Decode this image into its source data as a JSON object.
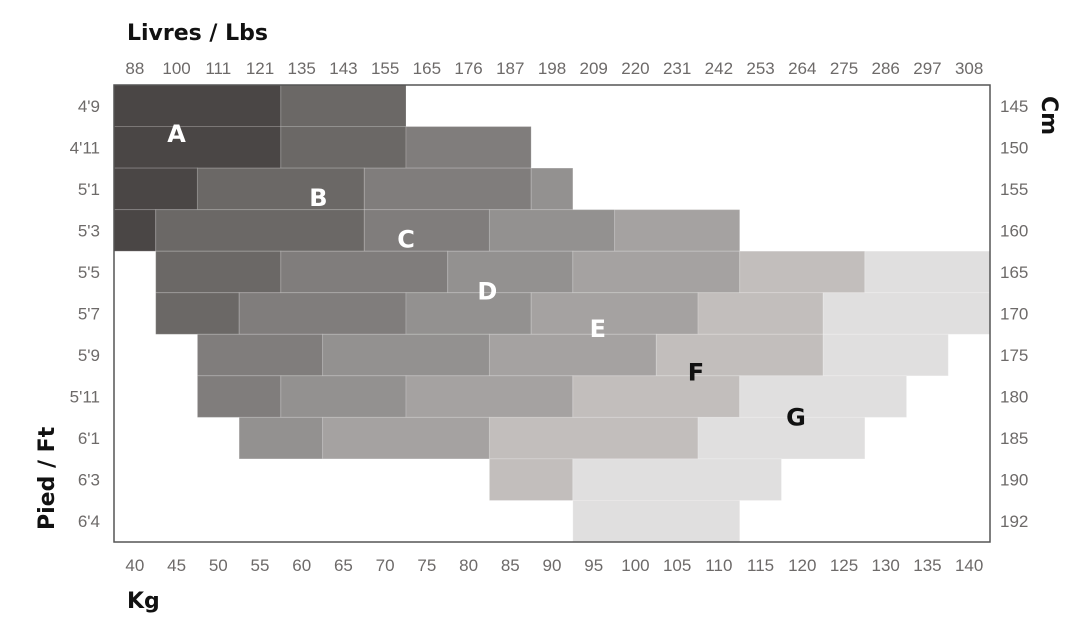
{
  "chart_data": {
    "type": "heatmap",
    "title": "",
    "top_axis_label": "Livres / Lbs",
    "bottom_axis_label": "Kg",
    "left_axis_label": "Pied / Ft",
    "right_axis_label": "Cm",
    "lbs_ticks": [
      "88",
      "100",
      "111",
      "121",
      "135",
      "143",
      "155",
      "165",
      "176",
      "187",
      "198",
      "209",
      "220",
      "231",
      "242",
      "253",
      "264",
      "275",
      "286",
      "297",
      "308"
    ],
    "kg_ticks": [
      "40",
      "45",
      "50",
      "55",
      "60",
      "65",
      "70",
      "75",
      "80",
      "85",
      "90",
      "95",
      "100",
      "105",
      "110",
      "115",
      "120",
      "125",
      "130",
      "135",
      "140"
    ],
    "ft_ticks": [
      "4'9",
      "4'11",
      "5'1",
      "5'3",
      "5'5",
      "5'7",
      "5'9",
      "5'11",
      "6'1",
      "6'3",
      "6'4"
    ],
    "cm_ticks": [
      "145",
      "150",
      "155",
      "160",
      "165",
      "170",
      "175",
      "180",
      "185",
      "190",
      "192"
    ],
    "sizes": [
      {
        "name": "A",
        "color": "#4a4645",
        "label_color": "#ffffff"
      },
      {
        "name": "B",
        "color": "#6b6866",
        "label_color": "#ffffff"
      },
      {
        "name": "C",
        "color": "#807d7c",
        "label_color": "#ffffff"
      },
      {
        "name": "D",
        "color": "#939190",
        "label_color": "#ffffff"
      },
      {
        "name": "E",
        "color": "#a5a2a1",
        "label_color": "#ffffff"
      },
      {
        "name": "F",
        "color": "#c2bebc",
        "label_color": "#111111"
      },
      {
        "name": "G",
        "color": "#e0dfdf",
        "label_color": "#111111"
      }
    ],
    "rows": [
      {
        "cm": "145",
        "segments": [
          [
            "A",
            40,
            55
          ],
          [
            "B",
            60,
            70
          ]
        ]
      },
      {
        "cm": "150",
        "segments": [
          [
            "A",
            40,
            55
          ],
          [
            "B",
            60,
            70
          ],
          [
            "C",
            75,
            85
          ]
        ]
      },
      {
        "cm": "155",
        "segments": [
          [
            "A",
            40,
            45
          ],
          [
            "B",
            50,
            65
          ],
          [
            "C",
            70,
            85
          ],
          [
            "D",
            90,
            90
          ]
        ]
      },
      {
        "cm": "160",
        "segments": [
          [
            "A",
            40,
            40
          ],
          [
            "B",
            45,
            65
          ],
          [
            "C",
            70,
            80
          ],
          [
            "D",
            85,
            95
          ],
          [
            "E",
            100,
            110
          ]
        ]
      },
      {
        "cm": "165",
        "segments": [
          [
            "B",
            45,
            55
          ],
          [
            "C",
            60,
            75
          ],
          [
            "D",
            80,
            90
          ],
          [
            "E",
            95,
            110
          ],
          [
            "F",
            115,
            125
          ],
          [
            "G",
            130,
            140
          ]
        ]
      },
      {
        "cm": "170",
        "segments": [
          [
            "B",
            45,
            50
          ],
          [
            "C",
            55,
            70
          ],
          [
            "D",
            75,
            85
          ],
          [
            "E",
            90,
            105
          ],
          [
            "F",
            110,
            120
          ],
          [
            "G",
            125,
            140
          ]
        ]
      },
      {
        "cm": "175",
        "segments": [
          [
            "C",
            50,
            60
          ],
          [
            "D",
            65,
            80
          ],
          [
            "E",
            85,
            100
          ],
          [
            "F",
            105,
            120
          ],
          [
            "G",
            125,
            135
          ]
        ]
      },
      {
        "cm": "180",
        "segments": [
          [
            "C",
            50,
            55
          ],
          [
            "D",
            60,
            70
          ],
          [
            "E",
            75,
            90
          ],
          [
            "F",
            95,
            110
          ],
          [
            "G",
            115,
            130
          ]
        ]
      },
      {
        "cm": "185",
        "segments": [
          [
            "D",
            55,
            60
          ],
          [
            "E",
            65,
            80
          ],
          [
            "F",
            85,
            105
          ],
          [
            "G",
            110,
            125
          ]
        ]
      },
      {
        "cm": "190",
        "segments": [
          [
            "F",
            85,
            90
          ],
          [
            "G",
            95,
            115
          ]
        ]
      },
      {
        "cm": "192",
        "segments": [
          [
            "G",
            95,
            110
          ]
        ]
      }
    ],
    "grid": false
  }
}
